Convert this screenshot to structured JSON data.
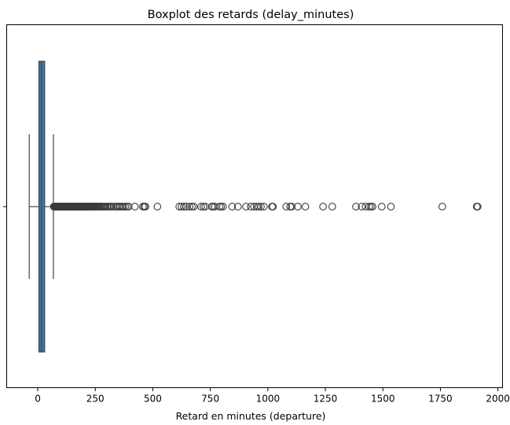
{
  "chart_data": {
    "type": "boxplot",
    "orientation": "horizontal",
    "title": "Boxplot des retards (delay_minutes)",
    "xlabel": "Retard en minutes (departure)",
    "ylabel": "",
    "xlim": [
      -135,
      2020
    ],
    "xticks": [
      0,
      250,
      500,
      750,
      1000,
      1250,
      1500,
      1750,
      2000
    ],
    "xtick_labels": [
      "0",
      "250",
      "500",
      "750",
      "1000",
      "1250",
      "1500",
      "1750",
      "2000"
    ],
    "grid": false,
    "box": {
      "whisker_low": -37,
      "q1": 5,
      "median": 16,
      "q3": 30,
      "whisker_high": 68,
      "fill_color": "#3a78a8",
      "line_color": "#444444"
    },
    "outliers": [
      70,
      72,
      74,
      76,
      78,
      80,
      82,
      84,
      86,
      88,
      90,
      92,
      95,
      98,
      101,
      104,
      107,
      110,
      113,
      116,
      119,
      122,
      125,
      128,
      131,
      134,
      137,
      140,
      143,
      146,
      149,
      152,
      155,
      158,
      161,
      164,
      167,
      170,
      173,
      176,
      179,
      182,
      185,
      188,
      191,
      194,
      197,
      200,
      203,
      206,
      209,
      212,
      215,
      218,
      221,
      224,
      227,
      230,
      233,
      236,
      240,
      244,
      248,
      252,
      256,
      260,
      265,
      270,
      275,
      280,
      285,
      290,
      296,
      302,
      308,
      315,
      320,
      330,
      338,
      345,
      352,
      358,
      366,
      372,
      380,
      388,
      395,
      422,
      457,
      463,
      468,
      520,
      615,
      625,
      635,
      645,
      660,
      670,
      678,
      710,
      720,
      728,
      756,
      762,
      770,
      790,
      797,
      805,
      845,
      870,
      905,
      926,
      940,
      952,
      960,
      970,
      983,
      1018,
      1022,
      1080,
      1097,
      1104,
      1130,
      1163,
      1240,
      1280,
      1383,
      1408,
      1425,
      1440,
      1448,
      1455,
      1495,
      1535,
      1758,
      1908,
      1912
    ]
  }
}
